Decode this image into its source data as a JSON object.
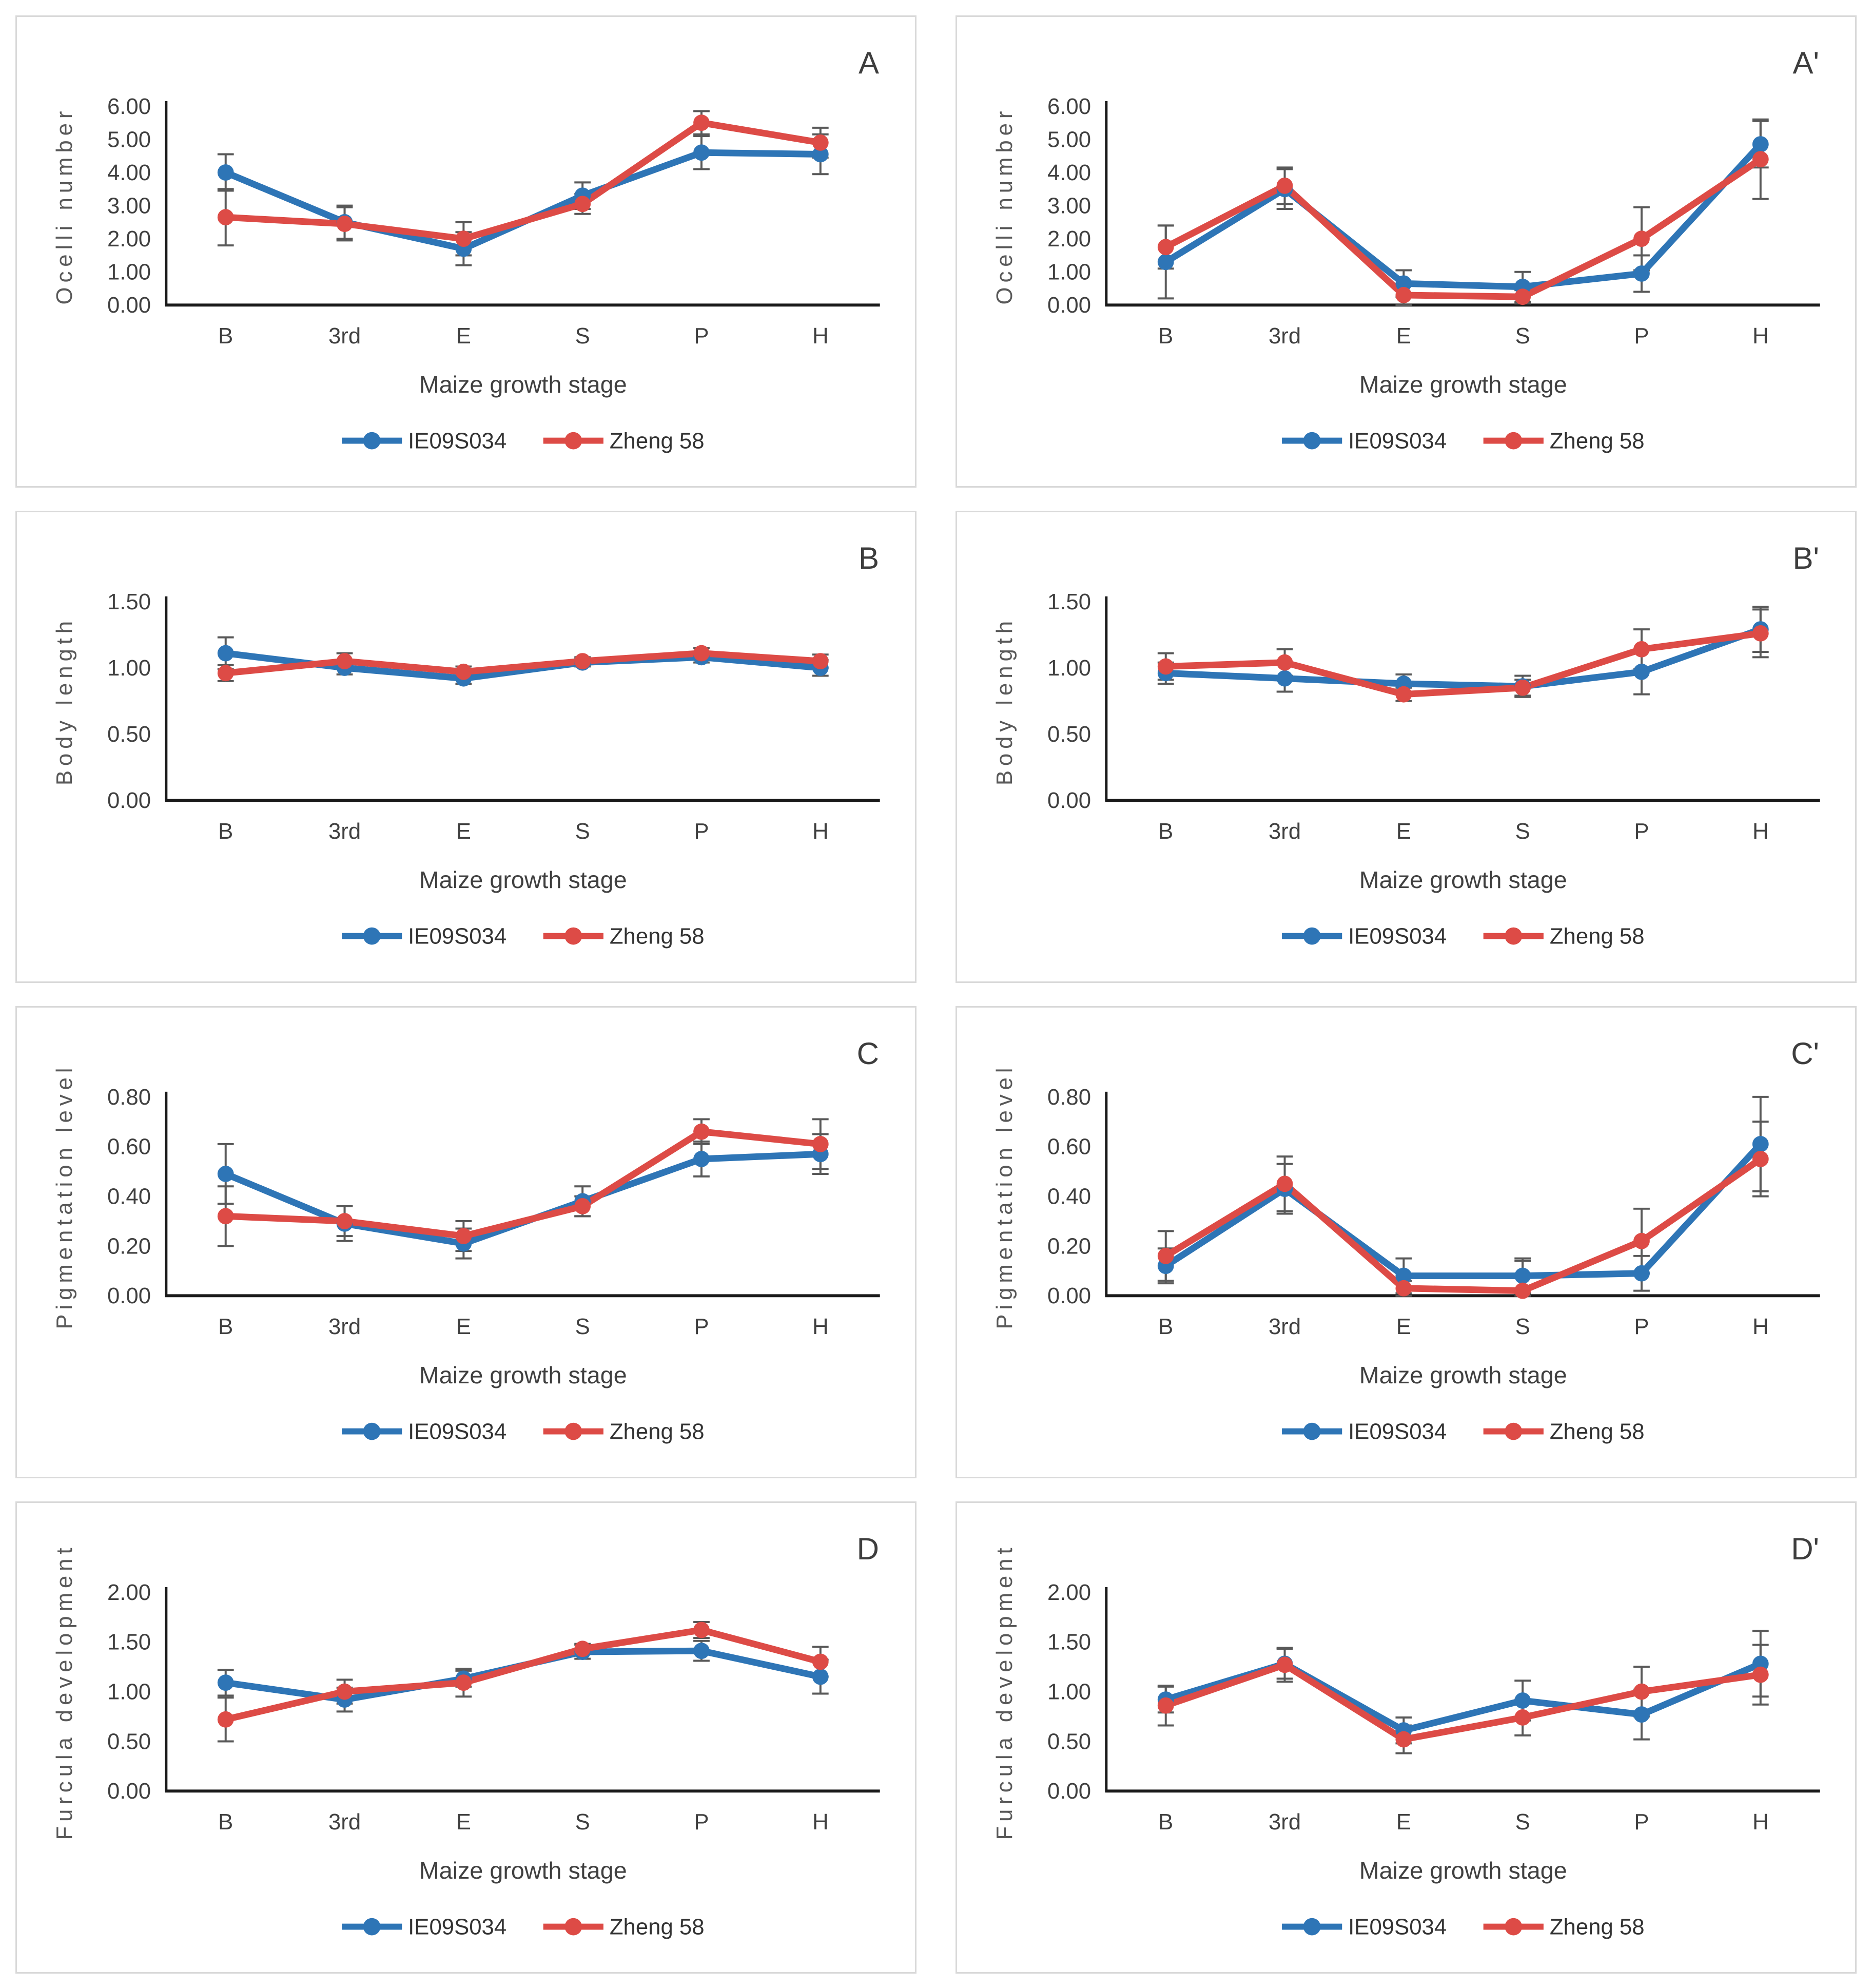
{
  "figure": {
    "background": "#ffffff",
    "panel_border_color": "#d9d9d9",
    "error_bar_color": "#595959",
    "axis_color": "#1a1a1a",
    "text_color": "#404040",
    "axis_title_color": "#595959"
  },
  "chart_data": [
    {
      "panel_label": "A",
      "type": "line",
      "categories": [
        "B",
        "3rd",
        "E",
        "S",
        "P",
        "H"
      ],
      "xlabel": "Maize growth stage",
      "ylabel": "Ocelli number",
      "ylim": [
        0,
        6
      ],
      "ytick_step": 1,
      "ytick_decimals": 2,
      "grid": false,
      "legend_position": "bottom",
      "error_bars": true,
      "series": [
        {
          "name": "IE09S034",
          "color": "#2E75B6",
          "values": [
            4.0,
            2.5,
            1.7,
            3.3,
            4.6,
            4.55
          ],
          "errors": [
            0.55,
            0.5,
            0.5,
            0.4,
            0.5,
            0.6
          ]
        },
        {
          "name": "Zheng 58",
          "color": "#DD4B46",
          "values": [
            2.65,
            2.45,
            2.0,
            3.05,
            5.5,
            4.9
          ],
          "errors": [
            0.85,
            0.5,
            0.5,
            0.3,
            0.35,
            0.45
          ]
        }
      ]
    },
    {
      "panel_label": "A'",
      "type": "line",
      "categories": [
        "B",
        "3rd",
        "E",
        "S",
        "P",
        "H"
      ],
      "xlabel": "Maize growth stage",
      "ylabel": "Ocelli number",
      "ylim": [
        0,
        6
      ],
      "ytick_step": 1,
      "ytick_decimals": 2,
      "grid": false,
      "legend_position": "bottom",
      "error_bars": true,
      "series": [
        {
          "name": "IE09S034",
          "color": "#2E75B6",
          "values": [
            1.3,
            3.5,
            0.65,
            0.55,
            0.95,
            4.85
          ],
          "errors": [
            1.1,
            0.6,
            0.4,
            0.45,
            0.55,
            0.7
          ]
        },
        {
          "name": "Zheng 58",
          "color": "#DD4B46",
          "values": [
            1.75,
            3.6,
            0.3,
            0.25,
            2.0,
            4.4
          ],
          "errors": [
            0.65,
            0.55,
            0.3,
            0.2,
            0.95,
            1.2
          ]
        }
      ]
    },
    {
      "panel_label": "B",
      "type": "line",
      "categories": [
        "B",
        "3rd",
        "E",
        "S",
        "P",
        "H"
      ],
      "xlabel": "Maize growth stage",
      "ylabel": "Body length",
      "ylim": [
        0,
        1.5
      ],
      "ytick_step": 0.5,
      "ytick_decimals": 2,
      "grid": false,
      "legend_position": "bottom",
      "error_bars": true,
      "series": [
        {
          "name": "IE09S034",
          "color": "#2E75B6",
          "values": [
            1.11,
            1.0,
            0.92,
            1.04,
            1.08,
            1.0
          ],
          "errors": [
            0.12,
            0.05,
            0.04,
            0.03,
            0.04,
            0.06
          ]
        },
        {
          "name": "Zheng 58",
          "color": "#DD4B46",
          "values": [
            0.96,
            1.05,
            0.97,
            1.05,
            1.11,
            1.05
          ],
          "errors": [
            0.06,
            0.06,
            0.04,
            0.03,
            0.04,
            0.05
          ]
        }
      ]
    },
    {
      "panel_label": "B'",
      "type": "line",
      "categories": [
        "B",
        "3rd",
        "E",
        "S",
        "P",
        "H"
      ],
      "xlabel": "Maize growth stage",
      "ylabel": "Body length",
      "ylim": [
        0,
        1.5
      ],
      "ytick_step": 0.5,
      "ytick_decimals": 2,
      "grid": false,
      "legend_position": "bottom",
      "error_bars": true,
      "series": [
        {
          "name": "IE09S034",
          "color": "#2E75B6",
          "values": [
            0.96,
            0.92,
            0.88,
            0.86,
            0.97,
            1.29
          ],
          "errors": [
            0.08,
            0.1,
            0.07,
            0.08,
            0.17,
            0.17
          ]
        },
        {
          "name": "Zheng 58",
          "color": "#DD4B46",
          "values": [
            1.01,
            1.04,
            0.8,
            0.85,
            1.14,
            1.26
          ],
          "errors": [
            0.1,
            0.1,
            0.05,
            0.06,
            0.15,
            0.18
          ]
        }
      ]
    },
    {
      "panel_label": "C",
      "type": "line",
      "categories": [
        "B",
        "3rd",
        "E",
        "S",
        "P",
        "H"
      ],
      "xlabel": "Maize growth stage",
      "ylabel": "Pigmentation level",
      "ylim": [
        0,
        0.8
      ],
      "ytick_step": 0.2,
      "ytick_decimals": 2,
      "grid": false,
      "legend_position": "bottom",
      "error_bars": true,
      "series": [
        {
          "name": "IE09S034",
          "color": "#2E75B6",
          "values": [
            0.49,
            0.29,
            0.21,
            0.38,
            0.55,
            0.57
          ],
          "errors": [
            0.12,
            0.07,
            0.06,
            0.06,
            0.07,
            0.08
          ]
        },
        {
          "name": "Zheng 58",
          "color": "#DD4B46",
          "values": [
            0.32,
            0.3,
            0.24,
            0.36,
            0.66,
            0.61
          ],
          "errors": [
            0.12,
            0.06,
            0.06,
            0.04,
            0.05,
            0.1
          ]
        }
      ]
    },
    {
      "panel_label": "C'",
      "type": "line",
      "categories": [
        "B",
        "3rd",
        "E",
        "S",
        "P",
        "H"
      ],
      "xlabel": "Maize growth stage",
      "ylabel": "Pigmentation level",
      "ylim": [
        0,
        0.8
      ],
      "ytick_step": 0.2,
      "ytick_decimals": 2,
      "grid": false,
      "legend_position": "bottom",
      "error_bars": true,
      "series": [
        {
          "name": "IE09S034",
          "color": "#2E75B6",
          "values": [
            0.12,
            0.43,
            0.08,
            0.08,
            0.09,
            0.61
          ],
          "errors": [
            0.07,
            0.1,
            0.07,
            0.07,
            0.07,
            0.19
          ]
        },
        {
          "name": "Zheng 58",
          "color": "#DD4B46",
          "values": [
            0.16,
            0.45,
            0.03,
            0.02,
            0.22,
            0.55
          ],
          "errors": [
            0.1,
            0.11,
            0.03,
            0.12,
            0.13,
            0.15
          ]
        }
      ]
    },
    {
      "panel_label": "D",
      "type": "line",
      "categories": [
        "B",
        "3rd",
        "E",
        "S",
        "P",
        "H"
      ],
      "xlabel": "Maize growth stage",
      "ylabel": "Furcula development",
      "ylim": [
        0,
        2
      ],
      "ytick_step": 0.5,
      "ytick_decimals": 2,
      "grid": false,
      "legend_position": "bottom",
      "error_bars": true,
      "series": [
        {
          "name": "IE09S034",
          "color": "#2E75B6",
          "values": [
            1.09,
            0.92,
            1.13,
            1.4,
            1.41,
            1.15
          ],
          "errors": [
            0.13,
            0.12,
            0.08,
            0.07,
            0.1,
            0.17
          ]
        },
        {
          "name": "Zheng 58",
          "color": "#DD4B46",
          "values": [
            0.72,
            1.0,
            1.09,
            1.43,
            1.62,
            1.3
          ],
          "errors": [
            0.22,
            0.12,
            0.14,
            0.05,
            0.08,
            0.15
          ]
        }
      ]
    },
    {
      "panel_label": "D'",
      "type": "line",
      "categories": [
        "B",
        "3rd",
        "E",
        "S",
        "P",
        "H"
      ],
      "xlabel": "Maize growth stage",
      "ylabel": "Furcula development",
      "ylim": [
        0,
        2
      ],
      "ytick_step": 0.5,
      "ytick_decimals": 2,
      "grid": false,
      "legend_position": "bottom",
      "error_bars": true,
      "series": [
        {
          "name": "IE09S034",
          "color": "#2E75B6",
          "values": [
            0.92,
            1.28,
            0.61,
            0.91,
            0.77,
            1.28
          ],
          "errors": [
            0.13,
            0.15,
            0.13,
            0.2,
            0.25,
            0.33
          ]
        },
        {
          "name": "Zheng 58",
          "color": "#DD4B46",
          "values": [
            0.86,
            1.27,
            0.52,
            0.74,
            1.0,
            1.17
          ],
          "errors": [
            0.2,
            0.17,
            0.14,
            0.18,
            0.25,
            0.3
          ]
        }
      ]
    }
  ]
}
